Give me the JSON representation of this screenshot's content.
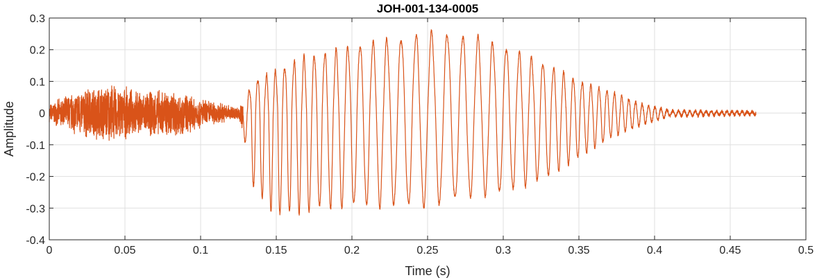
{
  "chart_data": {
    "type": "line",
    "title": "JOH-001-134-0005",
    "xlabel": "Time (s)",
    "ylabel": "Amplitude",
    "xlim": [
      0,
      0.5
    ],
    "ylim": [
      -0.4,
      0.3
    ],
    "grid": true,
    "x_ticks": [
      "0",
      "0.05",
      "0.1",
      "0.15",
      "0.2",
      "0.25",
      "0.3",
      "0.35",
      "0.4",
      "0.45",
      "0.5"
    ],
    "y_ticks": [
      "-0.4",
      "-0.3",
      "-0.2",
      "-0.1",
      "0",
      "0.1",
      "0.2",
      "0.3"
    ],
    "series": [
      {
        "color": "#D95319",
        "duration": 0.467,
        "envelope": {
          "x": [
            0,
            0.02,
            0.04,
            0.06,
            0.08,
            0.1,
            0.125,
            0.13,
            0.135,
            0.15,
            0.165,
            0.2,
            0.25,
            0.26,
            0.28,
            0.3,
            0.33,
            0.35,
            0.37,
            0.39,
            0.41,
            0.467
          ],
          "upper": [
            0.03,
            0.08,
            0.1,
            0.07,
            0.08,
            0.05,
            0.02,
            0.05,
            0.1,
            0.13,
            0.17,
            0.21,
            0.25,
            0.25,
            0.24,
            0.21,
            0.15,
            0.1,
            0.07,
            0.03,
            0.008,
            0.004
          ],
          "lower": [
            -0.03,
            -0.08,
            -0.1,
            -0.07,
            -0.09,
            -0.05,
            -0.02,
            -0.1,
            -0.24,
            -0.32,
            -0.31,
            -0.29,
            -0.29,
            -0.28,
            -0.26,
            -0.25,
            -0.2,
            -0.14,
            -0.08,
            -0.04,
            -0.01,
            -0.005
          ]
        }
      }
    ]
  }
}
